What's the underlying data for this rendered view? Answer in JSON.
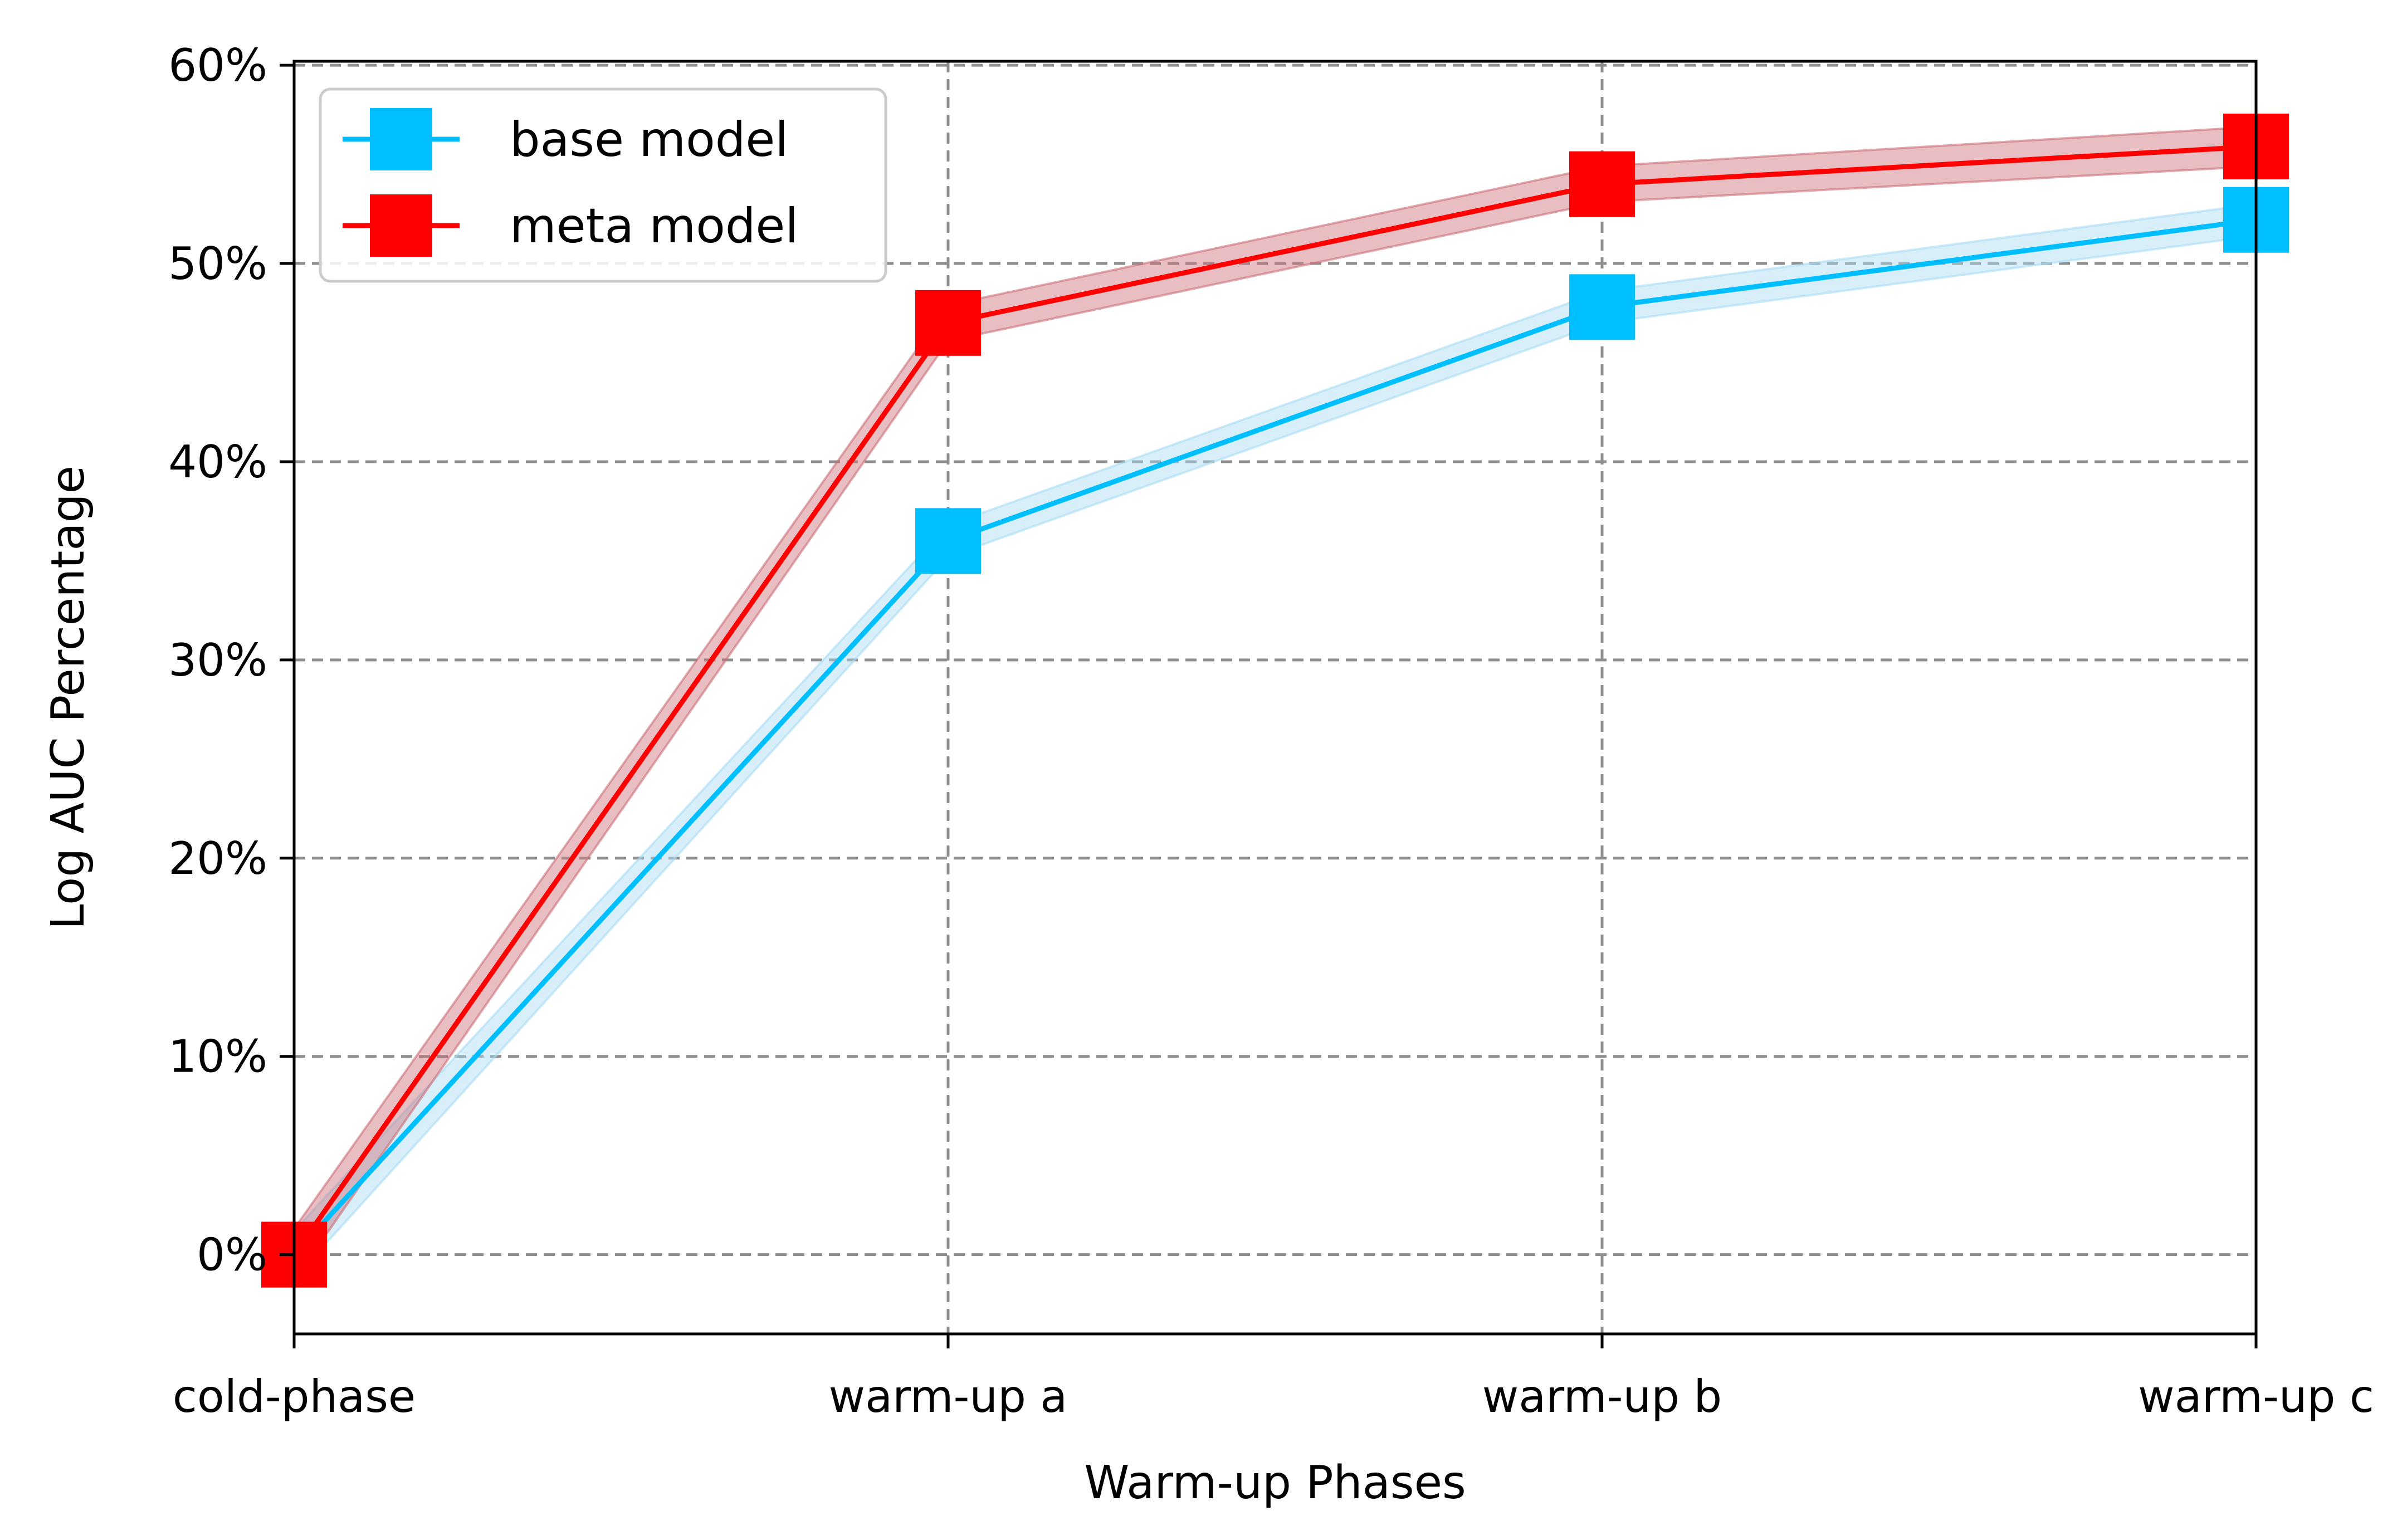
{
  "chart_data": {
    "type": "line",
    "title": "",
    "xlabel": "Warm-up Phases",
    "ylabel": "Log AUC Percentage",
    "categories": [
      "cold-phase",
      "warm-up a",
      "warm-up b",
      "warm-up c"
    ],
    "y_tick_values": [
      0,
      10,
      20,
      30,
      40,
      50,
      60
    ],
    "y_tick_labels": [
      "0%",
      "10%",
      "20%",
      "30%",
      "40%",
      "50%",
      "60%"
    ],
    "ylim": [
      -4,
      60.2
    ],
    "grid": true,
    "grid_style": "dashed",
    "legend_position": "upper-left",
    "series": [
      {
        "name": "base model",
        "color": "#00bfff",
        "band_color": "#a8dcf5",
        "marker": "square",
        "values": [
          0,
          36,
          47.8,
          52.2
        ],
        "band_lower": [
          -1.2,
          35.2,
          47.0,
          51.4
        ],
        "band_upper": [
          1.2,
          36.8,
          48.6,
          53.0
        ]
      },
      {
        "name": "meta model",
        "color": "#ff0000",
        "band_color": "#cc6f78",
        "marker": "square",
        "values": [
          0,
          47,
          54,
          55.9
        ],
        "band_lower": [
          -1.3,
          46.1,
          53.1,
          54.9
        ],
        "band_upper": [
          1.3,
          47.9,
          54.9,
          56.9
        ]
      }
    ]
  }
}
